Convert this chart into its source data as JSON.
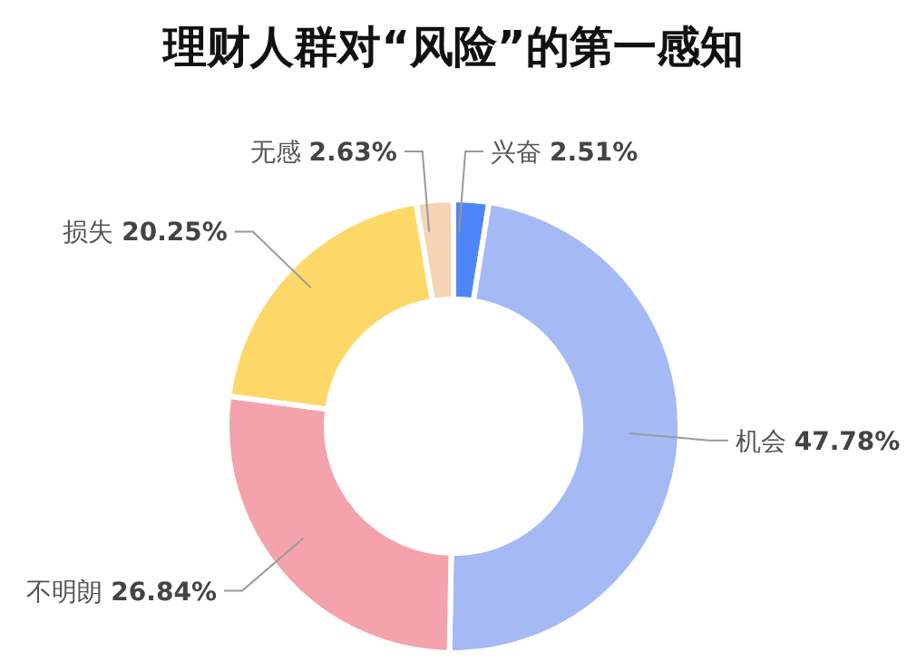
{
  "chart_data": {
    "type": "donut",
    "title": "理财人群对“风险”的第一感知",
    "categories": [
      "兴奋",
      "机会",
      "不明朗",
      "损失",
      "无感"
    ],
    "values": [
      2.51,
      47.78,
      26.84,
      20.25,
      2.63
    ],
    "colors": [
      "#4f86f7",
      "#a5b9f4",
      "#f4a2ac",
      "#fdd868",
      "#f5d4b4"
    ],
    "value_labels": [
      "2.51%",
      "47.78%",
      "26.84%",
      "20.25%",
      "2.63%"
    ]
  }
}
